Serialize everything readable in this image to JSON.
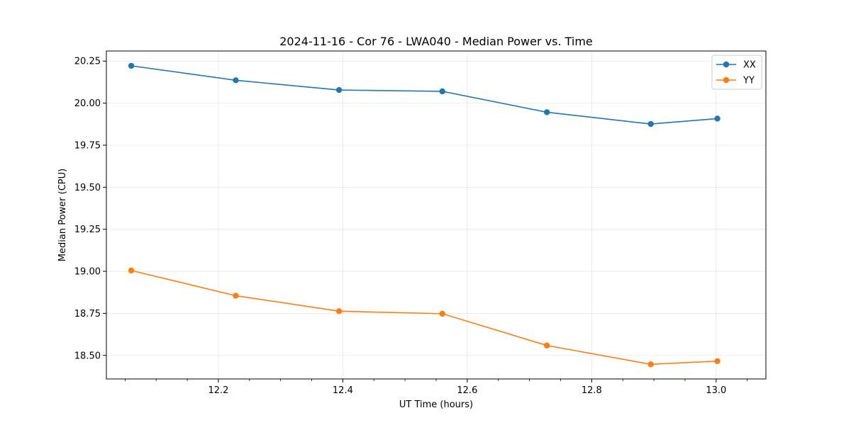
{
  "chart_data": {
    "type": "line",
    "title": "2024-11-16 - Cor 76 - LWA040 - Median Power vs. Time",
    "xlabel": "UT Time (hours)",
    "ylabel": "Median Power (CPU)",
    "xlim": [
      12.02,
      13.08
    ],
    "ylim": [
      18.36,
      20.31
    ],
    "xticks": [
      12.2,
      12.4,
      12.6,
      12.8,
      13.0
    ],
    "xtick_labels": [
      "12.2",
      "12.4",
      "12.6",
      "12.8",
      "13.0"
    ],
    "xminor": [
      12.05,
      12.1,
      12.15,
      12.25,
      12.3,
      12.35,
      12.45,
      12.5,
      12.55,
      12.65,
      12.7,
      12.75,
      12.85,
      12.9,
      12.95,
      13.05
    ],
    "yticks": [
      18.5,
      18.75,
      19.0,
      19.25,
      19.5,
      19.75,
      20.0,
      20.25
    ],
    "ytick_labels": [
      "18.50",
      "18.75",
      "19.00",
      "19.25",
      "19.50",
      "19.75",
      "20.00",
      "20.25"
    ],
    "grid": true,
    "legend_position": "top-right",
    "x": [
      12.06,
      12.228,
      12.394,
      12.56,
      12.728,
      12.895,
      13.002
    ],
    "series": [
      {
        "name": "XX",
        "color": "#1f77b4",
        "values": [
          20.222,
          20.136,
          20.078,
          20.07,
          19.946,
          19.876,
          19.908
        ]
      },
      {
        "name": "YY",
        "color": "#ff7f0e",
        "values": [
          19.005,
          18.855,
          18.763,
          18.748,
          18.559,
          18.447,
          18.466
        ]
      }
    ]
  }
}
